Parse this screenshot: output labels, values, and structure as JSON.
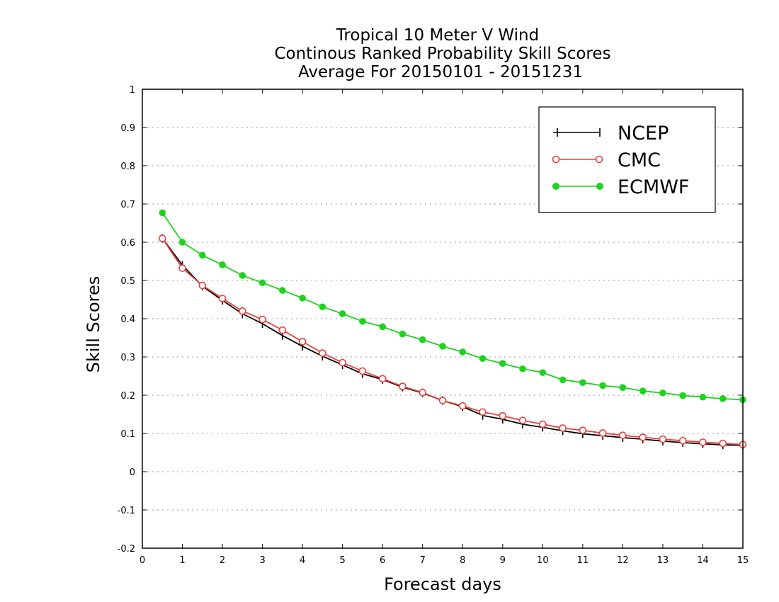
{
  "chart_data": {
    "type": "line",
    "title": [
      "Tropical 10 Meter V Wind",
      "Continous Ranked Probability Skill Scores",
      "Average For 20150101 - 20151231"
    ],
    "xlabel": "Forecast days",
    "ylabel": "Skill Scores",
    "xlim": [
      0,
      15
    ],
    "ylim": [
      -0.2,
      1
    ],
    "xticks": [
      0,
      1,
      2,
      3,
      4,
      5,
      6,
      7,
      8,
      9,
      10,
      11,
      12,
      13,
      14,
      15
    ],
    "yticks": [
      -0.2,
      -0.1,
      0,
      0.1,
      0.2,
      0.3,
      0.4,
      0.5,
      0.6,
      0.7,
      0.8,
      0.9,
      1
    ],
    "ytick_labels": [
      "-0.2",
      "-0.1",
      "0",
      "0.1",
      "0.2",
      "0.3",
      "0.4",
      "0.5",
      "0.6",
      "0.7",
      "0.8",
      "0.9",
      "1"
    ],
    "grid": "horizontal dotted",
    "legend_position": "top-right",
    "x": [
      0.5,
      1,
      1.5,
      2,
      2.5,
      3,
      3.5,
      4,
      4.5,
      5,
      5.5,
      6,
      6.5,
      7,
      7.5,
      8,
      8.5,
      9,
      9.5,
      10,
      10.5,
      11,
      11.5,
      12,
      12.5,
      13,
      13.5,
      14,
      14.5,
      15
    ],
    "series": [
      {
        "name": "NCEP",
        "color": "#000000",
        "marker": "plus",
        "values": [
          0.61,
          0.54,
          0.485,
          0.448,
          0.413,
          0.387,
          0.356,
          0.328,
          0.302,
          0.279,
          0.256,
          0.241,
          0.221,
          0.206,
          0.186,
          0.17,
          0.147,
          0.137,
          0.124,
          0.116,
          0.107,
          0.099,
          0.094,
          0.089,
          0.085,
          0.08,
          0.076,
          0.073,
          0.07,
          0.069
        ]
      },
      {
        "name": "CMC",
        "color": "#e8413e",
        "marker": "open-circle",
        "values": [
          0.61,
          0.532,
          0.487,
          0.453,
          0.42,
          0.398,
          0.37,
          0.34,
          0.31,
          0.285,
          0.263,
          0.243,
          0.223,
          0.207,
          0.186,
          0.172,
          0.156,
          0.146,
          0.134,
          0.124,
          0.114,
          0.108,
          0.101,
          0.095,
          0.09,
          0.085,
          0.081,
          0.077,
          0.074,
          0.071
        ]
      },
      {
        "name": "ECMWF",
        "color": "#1ed21e",
        "marker": "filled-circle",
        "values": [
          0.677,
          0.6,
          0.566,
          0.541,
          0.513,
          0.494,
          0.474,
          0.454,
          0.431,
          0.413,
          0.393,
          0.379,
          0.36,
          0.345,
          0.328,
          0.313,
          0.296,
          0.283,
          0.269,
          0.259,
          0.24,
          0.233,
          0.225,
          0.22,
          0.211,
          0.206,
          0.199,
          0.195,
          0.191,
          0.188
        ]
      }
    ]
  }
}
